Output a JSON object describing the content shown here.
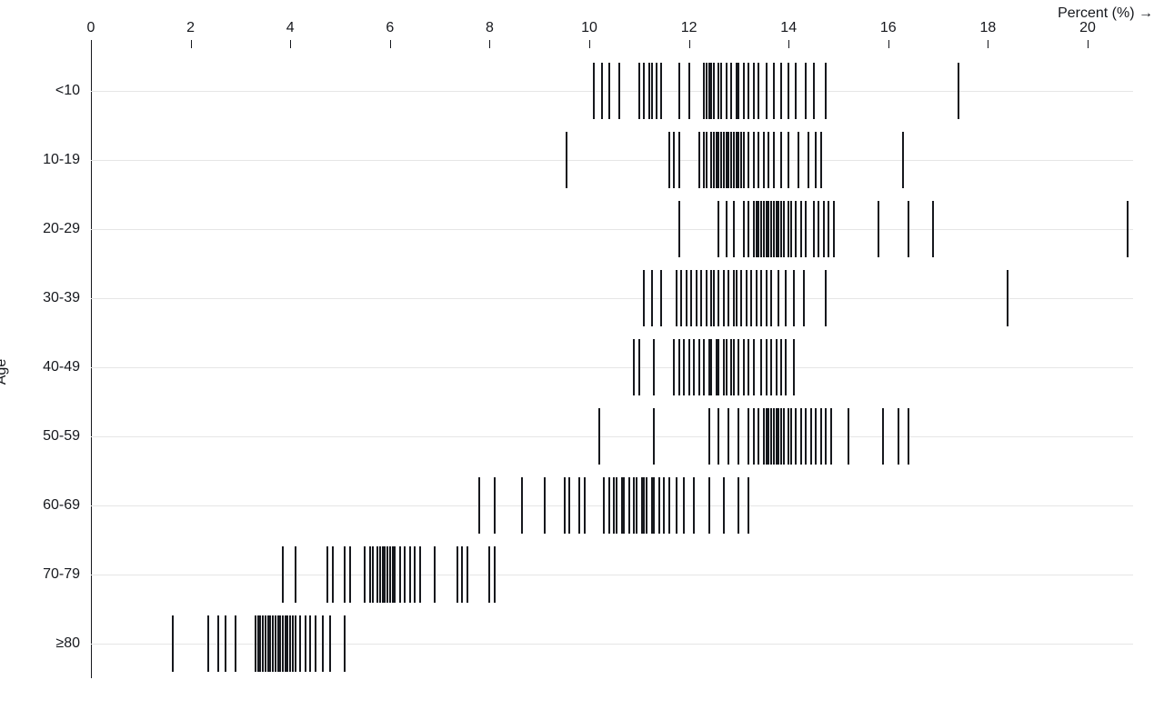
{
  "chart_data": {
    "type": "scatter",
    "mark": "tick-strip",
    "title": "",
    "xlabel": "Percent (%) →",
    "ylabel": "Age",
    "x_ticks": [
      0,
      2,
      4,
      6,
      8,
      10,
      12,
      14,
      16,
      18,
      20
    ],
    "xlim": [
      0,
      20.9
    ],
    "grid": "horizontal",
    "legend": "none",
    "categories": [
      "<10",
      "10-19",
      "20-29",
      "30-39",
      "40-49",
      "50-59",
      "60-69",
      "70-79",
      "≥80"
    ],
    "groups": [
      {
        "label": "<10",
        "values": [
          10.1,
          10.25,
          10.4,
          10.6,
          11.0,
          11.1,
          11.2,
          11.25,
          11.35,
          11.45,
          11.8,
          12.0,
          12.3,
          12.35,
          12.4,
          12.45,
          12.5,
          12.6,
          12.65,
          12.75,
          12.85,
          12.95,
          13.0,
          13.1,
          13.2,
          13.3,
          13.4,
          13.55,
          13.7,
          13.85,
          14.0,
          14.15,
          14.35,
          14.5,
          14.75,
          17.4
        ]
      },
      {
        "label": "10-19",
        "values": [
          9.55,
          11.6,
          11.7,
          11.8,
          12.2,
          12.3,
          12.35,
          12.45,
          12.5,
          12.55,
          12.6,
          12.65,
          12.7,
          12.75,
          12.8,
          12.85,
          12.9,
          12.95,
          13.0,
          13.05,
          13.1,
          13.2,
          13.3,
          13.4,
          13.5,
          13.6,
          13.7,
          13.85,
          14.0,
          14.2,
          14.4,
          14.55,
          14.65,
          16.3
        ]
      },
      {
        "label": "20-29",
        "values": [
          11.8,
          12.6,
          12.75,
          12.9,
          13.1,
          13.2,
          13.3,
          13.35,
          13.4,
          13.45,
          13.5,
          13.55,
          13.6,
          13.65,
          13.7,
          13.75,
          13.8,
          13.85,
          13.9,
          14.0,
          14.05,
          14.15,
          14.25,
          14.35,
          14.5,
          14.6,
          14.7,
          14.8,
          14.9,
          15.8,
          16.4,
          16.9,
          20.8
        ]
      },
      {
        "label": "30-39",
        "values": [
          11.1,
          11.25,
          11.45,
          11.75,
          11.85,
          11.95,
          12.05,
          12.15,
          12.25,
          12.35,
          12.45,
          12.5,
          12.6,
          12.7,
          12.8,
          12.9,
          12.95,
          13.05,
          13.15,
          13.25,
          13.35,
          13.45,
          13.55,
          13.65,
          13.8,
          13.95,
          14.1,
          14.3,
          14.75,
          18.4
        ]
      },
      {
        "label": "40-49",
        "values": [
          10.9,
          11.0,
          11.3,
          11.7,
          11.8,
          11.9,
          12.0,
          12.1,
          12.2,
          12.3,
          12.4,
          12.45,
          12.55,
          12.6,
          12.7,
          12.75,
          12.85,
          12.9,
          13.0,
          13.1,
          13.2,
          13.3,
          13.45,
          13.55,
          13.65,
          13.75,
          13.85,
          13.95,
          14.1
        ]
      },
      {
        "label": "50-59",
        "values": [
          10.2,
          11.3,
          12.4,
          12.6,
          12.8,
          13.0,
          13.2,
          13.3,
          13.4,
          13.5,
          13.55,
          13.6,
          13.65,
          13.7,
          13.75,
          13.8,
          13.85,
          13.9,
          14.0,
          14.05,
          14.15,
          14.25,
          14.35,
          14.45,
          14.55,
          14.65,
          14.75,
          14.85,
          15.2,
          15.9,
          16.2,
          16.4
        ]
      },
      {
        "label": "60-69",
        "values": [
          7.8,
          8.1,
          8.65,
          9.1,
          9.5,
          9.6,
          9.8,
          9.9,
          10.3,
          10.4,
          10.5,
          10.55,
          10.65,
          10.7,
          10.8,
          10.9,
          10.95,
          11.05,
          11.1,
          11.15,
          11.25,
          11.3,
          11.4,
          11.5,
          11.6,
          11.75,
          11.9,
          12.1,
          12.4,
          12.7,
          13.0,
          13.2
        ]
      },
      {
        "label": "70-79",
        "values": [
          3.85,
          4.1,
          4.75,
          4.85,
          5.1,
          5.2,
          5.5,
          5.6,
          5.65,
          5.75,
          5.8,
          5.85,
          5.9,
          5.95,
          6.0,
          6.05,
          6.1,
          6.2,
          6.3,
          6.4,
          6.5,
          6.6,
          6.9,
          7.35,
          7.45,
          7.55,
          8.0,
          8.1
        ]
      },
      {
        "label": "≥80",
        "values": [
          1.65,
          2.35,
          2.55,
          2.7,
          2.9,
          3.3,
          3.35,
          3.4,
          3.45,
          3.5,
          3.55,
          3.6,
          3.65,
          3.7,
          3.75,
          3.8,
          3.85,
          3.9,
          3.95,
          4.0,
          4.05,
          4.1,
          4.2,
          4.3,
          4.4,
          4.5,
          4.65,
          4.8,
          5.1
        ]
      }
    ],
    "colors": {
      "tick": "#16181d",
      "grid": "#e6e6e6",
      "axis": "#16181d",
      "background": "#ffffff"
    }
  }
}
